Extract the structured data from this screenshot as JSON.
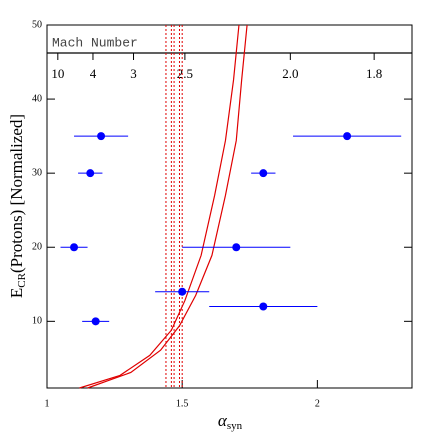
{
  "chart_data": {
    "type": "scatter",
    "x_label": "α",
    "x_label_sub": "syn",
    "y_label": "E",
    "y_label_sub": "CR",
    "y_label_rest": "(Protons) [Normalized]",
    "xlim": [
      1,
      2.35
    ],
    "ylim": [
      1,
      50
    ],
    "xticks": [
      1,
      1.5,
      2
    ],
    "yticks": [
      10,
      20,
      30,
      40,
      50
    ],
    "top_axis_label": "Mach Number",
    "top_ticks": [
      {
        "value": 1.04,
        "label": "10"
      },
      {
        "value": 1.17,
        "label": "4"
      },
      {
        "value": 1.32,
        "label": "3"
      },
      {
        "value": 1.51,
        "label": "2.5"
      },
      {
        "value": 1.9,
        "label": "2.0"
      },
      {
        "value": 2.21,
        "label": "1.8"
      }
    ],
    "points": {
      "color": "#0000ff",
      "x": [
        1.2,
        1.16,
        1.1,
        1.18,
        1.5,
        1.7,
        1.8,
        1.8,
        2.11
      ],
      "y": [
        35,
        30,
        20,
        10,
        14,
        20,
        30,
        12,
        35
      ],
      "xerr": [
        0.1,
        0.045,
        0.05,
        0.05,
        0.1,
        0.2,
        0.045,
        0.2,
        0.2
      ]
    },
    "curves": [
      {
        "color": "#e00000",
        "x": [
          1.12,
          1.27,
          1.38,
          1.46,
          1.51,
          1.57,
          1.62,
          1.66,
          1.69,
          1.71
        ],
        "y": [
          1,
          2.7,
          5.4,
          8.8,
          12.8,
          18.9,
          27,
          34.4,
          42.6,
          50
        ]
      },
      {
        "color": "#e00000",
        "x": [
          1.15,
          1.31,
          1.42,
          1.49,
          1.55,
          1.61,
          1.66,
          1.7,
          1.72,
          1.74
        ],
        "y": [
          1,
          3.1,
          6.1,
          9.4,
          13.5,
          18.9,
          27,
          34.4,
          42.6,
          50
        ]
      }
    ],
    "vlines": {
      "color": "#e00000",
      "x": [
        1.44,
        1.46,
        1.47,
        1.49,
        1.5
      ]
    }
  }
}
